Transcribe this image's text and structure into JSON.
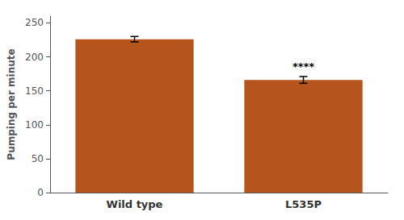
{
  "chart_data": {
    "type": "bar",
    "ylabel": "Pumping per minute",
    "categories": [
      "Wild type",
      "L535P"
    ],
    "values": [
      226,
      166
    ],
    "errors": [
      4,
      5
    ],
    "color": "#b5541c",
    "ylim": [
      0,
      260
    ],
    "yticks": [
      0,
      50,
      100,
      150,
      200,
      250
    ],
    "grid": false,
    "annotations": [
      {
        "text": "****",
        "category": "L535P"
      }
    ]
  }
}
